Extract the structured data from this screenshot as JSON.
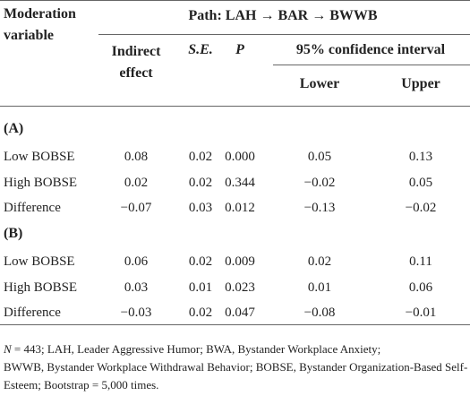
{
  "header": {
    "moderation_variable": "Moderation variable",
    "path": "Path: LAH → BAR → BWWB",
    "columns": [
      "Indirect effect",
      "S.E.",
      "P",
      "Lower",
      "Upper"
    ],
    "ci": "95% confidence interval"
  },
  "sections": [
    {
      "label": "(A)",
      "rows": [
        [
          "Low BOBSE",
          "0.08",
          "0.02",
          "0.000",
          "0.05",
          "0.13"
        ],
        [
          "High BOBSE",
          "0.02",
          "0.02",
          "0.344",
          "−0.02",
          "0.05"
        ],
        [
          "Difference",
          "−0.07",
          "0.03",
          "0.012",
          "−0.13",
          "−0.02"
        ]
      ]
    },
    {
      "label": "(B)",
      "rows": [
        [
          "Low BOBSE",
          "0.06",
          "0.02",
          "0.009",
          "0.02",
          "0.11"
        ],
        [
          "High BOBSE",
          "0.03",
          "0.01",
          "0.023",
          "0.01",
          "0.06"
        ],
        [
          "Difference",
          "−0.03",
          "0.02",
          "0.047",
          "−0.08",
          "−0.01"
        ]
      ]
    }
  ],
  "footnote": {
    "italic": "N",
    "lines": [
      " = 443; LAH, Leader Aggressive Humor; BWA, Bystander Workplace Anxiety;",
      "BWWB, Bystander Workplace Withdrawal Behavior; BOBSE, Bystander Organization-Based Self-",
      "Esteem; Bootstrap = 5,000 times."
    ]
  }
}
